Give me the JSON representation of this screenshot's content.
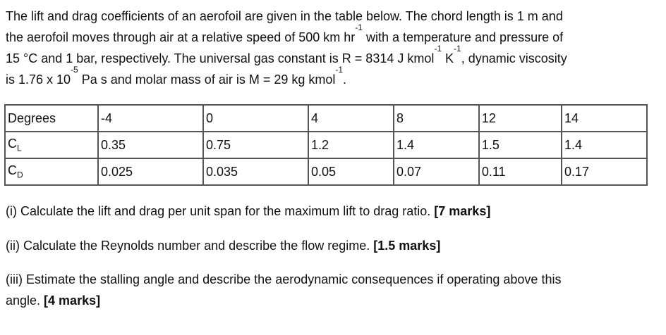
{
  "intro": [
    [
      {
        "t": "The lift and drag coefficients of an aerofoil are given in the table below. The chord length is 1 m and"
      }
    ],
    [
      {
        "t": "the aerofoil moves through air at a relative speed of 500 km hr"
      },
      {
        "sup": "-1"
      },
      {
        "t": " with a temperature and pressure of"
      }
    ],
    [
      {
        "t": "15 °C and 1 bar, respectively. The universal gas constant is R = 8314 J kmol"
      },
      {
        "sup": "-1"
      },
      {
        "t": " K"
      },
      {
        "sup": "-1"
      },
      {
        "t": ", dynamic viscosity"
      }
    ],
    [
      {
        "t": "is 1.76 x 10"
      },
      {
        "sup": "-5"
      },
      {
        "t": " Pa s and molar mass of air is M = 29 kg kmol"
      },
      {
        "sup": "-1"
      },
      {
        "t": "."
      }
    ]
  ],
  "table": {
    "rows": [
      {
        "label": "Degrees",
        "sub": "",
        "cells": [
          "-4",
          "0",
          "4",
          "8",
          "12",
          "14"
        ]
      },
      {
        "label": "C",
        "sub": "L",
        "cells": [
          "0.35",
          "0.75",
          "1.2",
          "1.4",
          "1.5",
          "1.4"
        ]
      },
      {
        "label": "C",
        "sub": "D",
        "cells": [
          "0.025",
          "0.035",
          "0.05",
          "0.07",
          "0.11",
          "0.17"
        ]
      }
    ]
  },
  "questions": [
    {
      "text": "(i) Calculate the lift and drag per unit span for the maximum lift to drag ratio. ",
      "marks": "[7 marks]"
    },
    {
      "text": "(ii) Calculate the Reynolds number and describe the flow regime. ",
      "marks": "[1.5 marks]"
    },
    {
      "text": "(iii) Estimate the stalling angle and describe the aerodynamic consequences if operating above this",
      "text2": "angle. ",
      "marks": "[4 marks]"
    }
  ]
}
